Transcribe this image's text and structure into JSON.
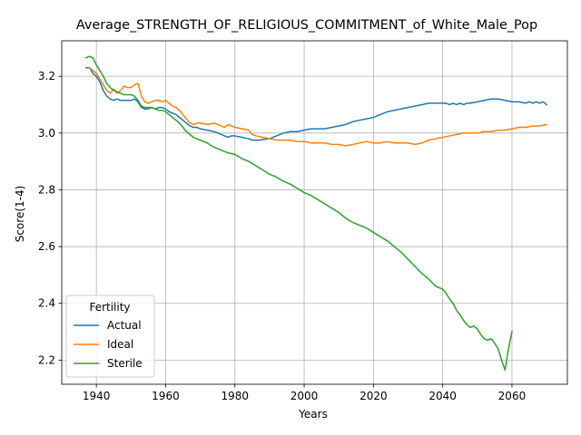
{
  "chart_data": {
    "type": "line",
    "title": "Average_STRENGTH_OF_RELIGIOUS_COMMITMENT_of_White_Male_Pop",
    "xlabel": "Years",
    "ylabel": "Score(1-4)",
    "xlim": [
      1930,
      2076
    ],
    "ylim": [
      2.115,
      3.325
    ],
    "xticks": [
      1940,
      1960,
      1980,
      2000,
      2020,
      2040,
      2060
    ],
    "yticks": [
      2.2,
      2.4,
      2.6,
      2.8,
      3.0,
      3.2
    ],
    "xtick_labels": [
      "1940",
      "1960",
      "1980",
      "2000",
      "2020",
      "2040",
      "2060"
    ],
    "ytick_labels": [
      "2.2",
      "2.4",
      "2.6",
      "2.8",
      "3.0",
      "3.2"
    ],
    "grid": true,
    "legend": {
      "title": "Fertility",
      "placement": "lower-left"
    },
    "series": [
      {
        "name": "Actual",
        "color": "#1f77b4",
        "points": [
          [
            1937,
            3.23
          ],
          [
            1938,
            3.23
          ],
          [
            1939,
            3.21
          ],
          [
            1940,
            3.2
          ],
          [
            1941,
            3.18
          ],
          [
            1942,
            3.15
          ],
          [
            1943,
            3.13
          ],
          [
            1944,
            3.12
          ],
          [
            1945,
            3.115
          ],
          [
            1946,
            3.12
          ],
          [
            1947,
            3.115
          ],
          [
            1948,
            3.115
          ],
          [
            1950,
            3.115
          ],
          [
            1951,
            3.12
          ],
          [
            1952,
            3.11
          ],
          [
            1953,
            3.09
          ],
          [
            1954,
            3.085
          ],
          [
            1955,
            3.085
          ],
          [
            1956,
            3.09
          ],
          [
            1957,
            3.085
          ],
          [
            1958,
            3.09
          ],
          [
            1959,
            3.09
          ],
          [
            1960,
            3.085
          ],
          [
            1961,
            3.075
          ],
          [
            1962,
            3.07
          ],
          [
            1963,
            3.065
          ],
          [
            1964,
            3.055
          ],
          [
            1965,
            3.045
          ],
          [
            1966,
            3.035
          ],
          [
            1967,
            3.025
          ],
          [
            1968,
            3.02
          ],
          [
            1969,
            3.02
          ],
          [
            1970,
            3.015
          ],
          [
            1972,
            3.01
          ],
          [
            1974,
            3.005
          ],
          [
            1976,
            2.995
          ],
          [
            1978,
            2.985
          ],
          [
            1979,
            2.99
          ],
          [
            1980,
            2.99
          ],
          [
            1982,
            2.985
          ],
          [
            1984,
            2.98
          ],
          [
            1985,
            2.975
          ],
          [
            1987,
            2.975
          ],
          [
            1990,
            2.98
          ],
          [
            1992,
            2.99
          ],
          [
            1994,
            3.0
          ],
          [
            1996,
            3.005
          ],
          [
            1998,
            3.005
          ],
          [
            2000,
            3.01
          ],
          [
            2002,
            3.015
          ],
          [
            2004,
            3.015
          ],
          [
            2006,
            3.015
          ],
          [
            2008,
            3.02
          ],
          [
            2010,
            3.025
          ],
          [
            2012,
            3.03
          ],
          [
            2014,
            3.04
          ],
          [
            2016,
            3.045
          ],
          [
            2018,
            3.05
          ],
          [
            2020,
            3.055
          ],
          [
            2022,
            3.065
          ],
          [
            2024,
            3.075
          ],
          [
            2026,
            3.08
          ],
          [
            2028,
            3.085
          ],
          [
            2030,
            3.09
          ],
          [
            2032,
            3.095
          ],
          [
            2034,
            3.1
          ],
          [
            2036,
            3.105
          ],
          [
            2038,
            3.105
          ],
          [
            2040,
            3.105
          ],
          [
            2041,
            3.105
          ],
          [
            2042,
            3.1
          ],
          [
            2043,
            3.105
          ],
          [
            2044,
            3.1
          ],
          [
            2045,
            3.105
          ],
          [
            2046,
            3.1
          ],
          [
            2047,
            3.105
          ],
          [
            2048,
            3.105
          ],
          [
            2050,
            3.11
          ],
          [
            2052,
            3.115
          ],
          [
            2054,
            3.12
          ],
          [
            2056,
            3.12
          ],
          [
            2058,
            3.115
          ],
          [
            2060,
            3.11
          ],
          [
            2062,
            3.11
          ],
          [
            2064,
            3.105
          ],
          [
            2065,
            3.11
          ],
          [
            2066,
            3.105
          ],
          [
            2067,
            3.11
          ],
          [
            2068,
            3.105
          ],
          [
            2069,
            3.11
          ],
          [
            2070,
            3.1
          ]
        ]
      },
      {
        "name": "Ideal",
        "color": "#ff7f0e",
        "points": [
          [
            1938,
            3.23
          ],
          [
            1939,
            3.22
          ],
          [
            1940,
            3.21
          ],
          [
            1941,
            3.19
          ],
          [
            1942,
            3.17
          ],
          [
            1943,
            3.15
          ],
          [
            1944,
            3.14
          ],
          [
            1945,
            3.155
          ],
          [
            1946,
            3.14
          ],
          [
            1947,
            3.15
          ],
          [
            1948,
            3.165
          ],
          [
            1949,
            3.16
          ],
          [
            1950,
            3.16
          ],
          [
            1951,
            3.17
          ],
          [
            1952,
            3.175
          ],
          [
            1953,
            3.13
          ],
          [
            1954,
            3.11
          ],
          [
            1955,
            3.105
          ],
          [
            1956,
            3.11
          ],
          [
            1957,
            3.115
          ],
          [
            1958,
            3.115
          ],
          [
            1959,
            3.11
          ],
          [
            1960,
            3.115
          ],
          [
            1961,
            3.105
          ],
          [
            1962,
            3.095
          ],
          [
            1963,
            3.09
          ],
          [
            1964,
            3.08
          ],
          [
            1965,
            3.065
          ],
          [
            1966,
            3.05
          ],
          [
            1967,
            3.035
          ],
          [
            1968,
            3.03
          ],
          [
            1969,
            3.035
          ],
          [
            1970,
            3.035
          ],
          [
            1972,
            3.03
          ],
          [
            1974,
            3.035
          ],
          [
            1976,
            3.025
          ],
          [
            1977,
            3.02
          ],
          [
            1978,
            3.03
          ],
          [
            1979,
            3.025
          ],
          [
            1980,
            3.02
          ],
          [
            1982,
            3.015
          ],
          [
            1984,
            3.01
          ],
          [
            1985,
            2.995
          ],
          [
            1986,
            2.99
          ],
          [
            1988,
            2.985
          ],
          [
            1990,
            2.98
          ],
          [
            1992,
            2.975
          ],
          [
            1994,
            2.975
          ],
          [
            1996,
            2.975
          ],
          [
            1998,
            2.97
          ],
          [
            2000,
            2.97
          ],
          [
            2002,
            2.965
          ],
          [
            2004,
            2.965
          ],
          [
            2006,
            2.965
          ],
          [
            2008,
            2.96
          ],
          [
            2010,
            2.96
          ],
          [
            2012,
            2.955
          ],
          [
            2014,
            2.96
          ],
          [
            2016,
            2.965
          ],
          [
            2018,
            2.97
          ],
          [
            2020,
            2.965
          ],
          [
            2022,
            2.965
          ],
          [
            2024,
            2.97
          ],
          [
            2026,
            2.965
          ],
          [
            2028,
            2.965
          ],
          [
            2030,
            2.965
          ],
          [
            2032,
            2.96
          ],
          [
            2034,
            2.965
          ],
          [
            2035,
            2.97
          ],
          [
            2036,
            2.975
          ],
          [
            2038,
            2.98
          ],
          [
            2040,
            2.985
          ],
          [
            2042,
            2.99
          ],
          [
            2044,
            2.995
          ],
          [
            2046,
            3.0
          ],
          [
            2048,
            3.0
          ],
          [
            2050,
            3.0
          ],
          [
            2052,
            3.005
          ],
          [
            2054,
            3.005
          ],
          [
            2056,
            3.01
          ],
          [
            2058,
            3.01
          ],
          [
            2060,
            3.015
          ],
          [
            2062,
            3.02
          ],
          [
            2064,
            3.02
          ],
          [
            2066,
            3.025
          ],
          [
            2068,
            3.025
          ],
          [
            2070,
            3.03
          ]
        ]
      },
      {
        "name": "Sterile",
        "color": "#2ca02c",
        "points": [
          [
            1937,
            3.265
          ],
          [
            1938,
            3.27
          ],
          [
            1939,
            3.265
          ],
          [
            1940,
            3.24
          ],
          [
            1941,
            3.22
          ],
          [
            1942,
            3.2
          ],
          [
            1943,
            3.175
          ],
          [
            1944,
            3.16
          ],
          [
            1945,
            3.15
          ],
          [
            1946,
            3.145
          ],
          [
            1947,
            3.14
          ],
          [
            1948,
            3.135
          ],
          [
            1950,
            3.135
          ],
          [
            1951,
            3.13
          ],
          [
            1952,
            3.115
          ],
          [
            1953,
            3.095
          ],
          [
            1954,
            3.09
          ],
          [
            1955,
            3.09
          ],
          [
            1956,
            3.09
          ],
          [
            1957,
            3.085
          ],
          [
            1958,
            3.08
          ],
          [
            1959,
            3.08
          ],
          [
            1960,
            3.075
          ],
          [
            1961,
            3.065
          ],
          [
            1962,
            3.055
          ],
          [
            1963,
            3.045
          ],
          [
            1964,
            3.035
          ],
          [
            1965,
            3.02
          ],
          [
            1966,
            3.005
          ],
          [
            1967,
            2.995
          ],
          [
            1968,
            2.985
          ],
          [
            1969,
            2.98
          ],
          [
            1970,
            2.975
          ],
          [
            1972,
            2.965
          ],
          [
            1974,
            2.95
          ],
          [
            1976,
            2.94
          ],
          [
            1978,
            2.93
          ],
          [
            1980,
            2.925
          ],
          [
            1982,
            2.91
          ],
          [
            1984,
            2.9
          ],
          [
            1986,
            2.885
          ],
          [
            1988,
            2.87
          ],
          [
            1990,
            2.855
          ],
          [
            1992,
            2.845
          ],
          [
            1994,
            2.83
          ],
          [
            1996,
            2.82
          ],
          [
            1998,
            2.805
          ],
          [
            2000,
            2.79
          ],
          [
            2002,
            2.78
          ],
          [
            2004,
            2.765
          ],
          [
            2006,
            2.75
          ],
          [
            2008,
            2.735
          ],
          [
            2010,
            2.72
          ],
          [
            2012,
            2.7
          ],
          [
            2014,
            2.685
          ],
          [
            2016,
            2.675
          ],
          [
            2018,
            2.665
          ],
          [
            2020,
            2.65
          ],
          [
            2022,
            2.635
          ],
          [
            2024,
            2.62
          ],
          [
            2026,
            2.6
          ],
          [
            2028,
            2.58
          ],
          [
            2030,
            2.555
          ],
          [
            2032,
            2.53
          ],
          [
            2034,
            2.505
          ],
          [
            2036,
            2.485
          ],
          [
            2038,
            2.46
          ],
          [
            2039,
            2.455
          ],
          [
            2040,
            2.45
          ],
          [
            2041,
            2.435
          ],
          [
            2042,
            2.415
          ],
          [
            2043,
            2.4
          ],
          [
            2044,
            2.375
          ],
          [
            2045,
            2.36
          ],
          [
            2046,
            2.34
          ],
          [
            2047,
            2.325
          ],
          [
            2048,
            2.315
          ],
          [
            2049,
            2.32
          ],
          [
            2050,
            2.31
          ],
          [
            2051,
            2.29
          ],
          [
            2052,
            2.275
          ],
          [
            2053,
            2.27
          ],
          [
            2054,
            2.275
          ],
          [
            2055,
            2.26
          ],
          [
            2056,
            2.24
          ],
          [
            2057,
            2.2
          ],
          [
            2058,
            2.165
          ],
          [
            2059,
            2.24
          ],
          [
            2060,
            2.3
          ]
        ]
      }
    ]
  }
}
